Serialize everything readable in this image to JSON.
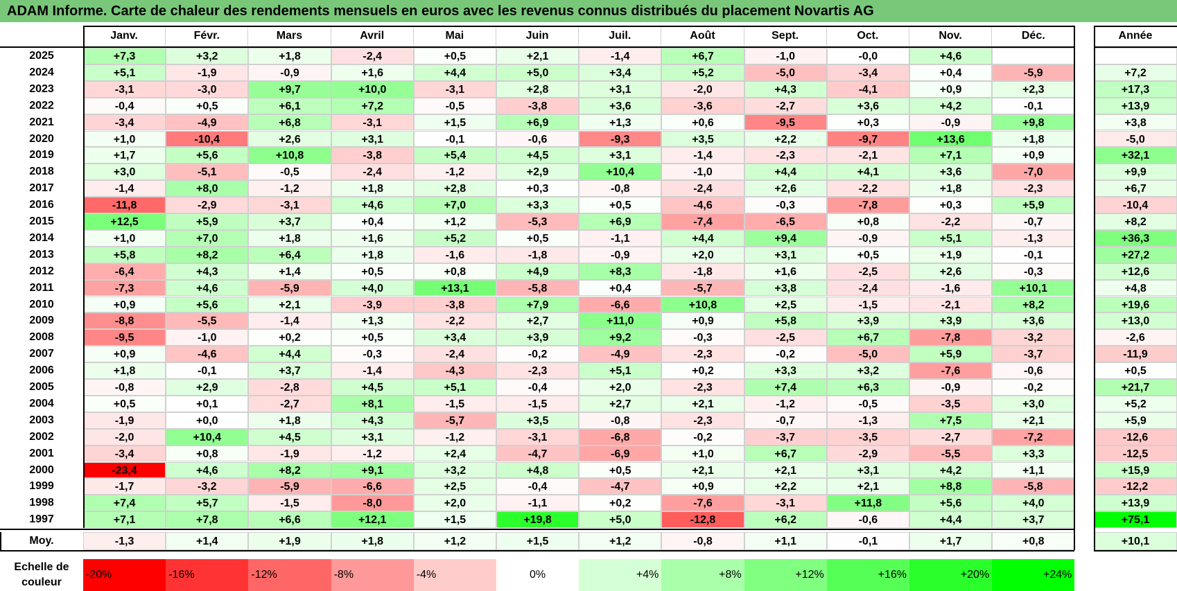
{
  "title": "ADAM Informe. Carte de chaleur des rendements mensuels en euros avec les revenus connus distribués du placement Novartis AG",
  "chart_data": {
    "type": "heatmap",
    "columns": [
      "Janv.",
      "Févr.",
      "Mars",
      "Avril",
      "Mai",
      "Juin",
      "Juil.",
      "Août",
      "Sept.",
      "Oct.",
      "Nov.",
      "Déc."
    ],
    "year_column_label": "Année",
    "rows": [
      {
        "year": "2025",
        "values": [
          "+7,3",
          "+3,2",
          "+1,8",
          "-2,4",
          "+0,5",
          "+2,1",
          "-1,4",
          "+6,7",
          "-1,0",
          "-0,0",
          "+4,6",
          ""
        ],
        "annual": ""
      },
      {
        "year": "2024",
        "values": [
          "+5,1",
          "-1,9",
          "-0,9",
          "+1,6",
          "+4,4",
          "+5,0",
          "+3,4",
          "+5,2",
          "-5,0",
          "-3,4",
          "+0,4",
          "-5,9"
        ],
        "annual": "+7,2"
      },
      {
        "year": "2023",
        "values": [
          "-3,1",
          "-3,0",
          "+9,7",
          "+10,0",
          "-3,1",
          "+2,8",
          "+3,1",
          "-2,0",
          "+4,3",
          "-4,1",
          "+0,9",
          "+2,3"
        ],
        "annual": "+17,3"
      },
      {
        "year": "2022",
        "values": [
          "-0,4",
          "+0,5",
          "+6,1",
          "+7,2",
          "-0,5",
          "-3,8",
          "+3,6",
          "-3,6",
          "-2,7",
          "+3,6",
          "+4,2",
          "-0,1"
        ],
        "annual": "+13,9"
      },
      {
        "year": "2021",
        "values": [
          "-3,4",
          "-4,9",
          "+6,8",
          "-3,1",
          "+1,5",
          "+6,9",
          "+1,3",
          "+0,6",
          "-9,5",
          "+0,3",
          "-0,9",
          "+9,8"
        ],
        "annual": "+3,8"
      },
      {
        "year": "2020",
        "values": [
          "+1,0",
          "-10,4",
          "+2,6",
          "+3,1",
          "-0,1",
          "-0,6",
          "-9,3",
          "+3,5",
          "+2,2",
          "-9,7",
          "+13,6",
          "+1,8"
        ],
        "annual": "-5,0"
      },
      {
        "year": "2019",
        "values": [
          "+1,7",
          "+5,6",
          "+10,8",
          "-3,8",
          "+5,4",
          "+4,5",
          "+3,1",
          "-1,4",
          "-2,3",
          "-2,1",
          "+7,1",
          "+0,9"
        ],
        "annual": "+32,1"
      },
      {
        "year": "2018",
        "values": [
          "+3,0",
          "-5,1",
          "-0,5",
          "-2,4",
          "-1,2",
          "+2,9",
          "+10,4",
          "-1,0",
          "+4,4",
          "+4,1",
          "+3,6",
          "-7,0"
        ],
        "annual": "+9,9"
      },
      {
        "year": "2017",
        "values": [
          "-1,4",
          "+8,0",
          "-1,2",
          "+1,8",
          "+2,8",
          "+0,3",
          "-0,8",
          "-2,4",
          "+2,6",
          "-2,2",
          "+1,8",
          "-2,3"
        ],
        "annual": "+6,7"
      },
      {
        "year": "2016",
        "values": [
          "-11,8",
          "-2,9",
          "-3,1",
          "+4,6",
          "+7,0",
          "+3,3",
          "+0,5",
          "-4,6",
          "-0,3",
          "-7,8",
          "+0,3",
          "+5,9"
        ],
        "annual": "-10,4"
      },
      {
        "year": "2015",
        "values": [
          "+12,5",
          "+5,9",
          "+3,7",
          "+0,4",
          "+1,2",
          "-5,3",
          "+6,9",
          "-7,4",
          "-6,5",
          "+0,8",
          "-2,2",
          "-0,7"
        ],
        "annual": "+8,2"
      },
      {
        "year": "2014",
        "values": [
          "+1,0",
          "+7,0",
          "+1,8",
          "+1,6",
          "+5,2",
          "+0,5",
          "-1,1",
          "+4,4",
          "+9,4",
          "-0,9",
          "+5,1",
          "-1,3"
        ],
        "annual": "+36,3"
      },
      {
        "year": "2013",
        "values": [
          "+5,8",
          "+8,2",
          "+6,4",
          "+1,8",
          "-1,6",
          "-1,8",
          "-0,9",
          "+2,0",
          "+3,1",
          "+0,5",
          "+1,9",
          "-0,1"
        ],
        "annual": "+27,2"
      },
      {
        "year": "2012",
        "values": [
          "-6,4",
          "+4,3",
          "+1,4",
          "+0,5",
          "+0,8",
          "+4,9",
          "+8,3",
          "-1,8",
          "+1,6",
          "-2,5",
          "+2,6",
          "-0,3"
        ],
        "annual": "+12,6"
      },
      {
        "year": "2011",
        "values": [
          "-7,3",
          "+4,6",
          "-5,9",
          "+4,0",
          "+13,1",
          "-5,8",
          "+0,4",
          "-5,7",
          "+3,8",
          "-2,4",
          "-1,6",
          "+10,1"
        ],
        "annual": "+4,8"
      },
      {
        "year": "2010",
        "values": [
          "+0,9",
          "+5,6",
          "+2,1",
          "-3,9",
          "-3,8",
          "+7,9",
          "-6,6",
          "+10,8",
          "+2,5",
          "-1,5",
          "-2,1",
          "+8,2"
        ],
        "annual": "+19,6"
      },
      {
        "year": "2009",
        "values": [
          "-8,8",
          "-5,5",
          "-1,4",
          "+1,3",
          "-2,2",
          "+2,7",
          "+11,0",
          "+0,9",
          "+5,8",
          "+3,9",
          "+3,9",
          "+3,6"
        ],
        "annual": "+13,0"
      },
      {
        "year": "2008",
        "values": [
          "-9,5",
          "-1,0",
          "+0,2",
          "+0,5",
          "+3,4",
          "+3,9",
          "+9,2",
          "-0,3",
          "-2,5",
          "+6,7",
          "-7,8",
          "-3,2"
        ],
        "annual": "-2,6"
      },
      {
        "year": "2007",
        "values": [
          "+0,9",
          "-4,6",
          "+4,4",
          "-0,3",
          "-2,4",
          "-0,2",
          "-4,9",
          "-2,3",
          "-0,2",
          "-5,0",
          "+5,9",
          "-3,7"
        ],
        "annual": "-11,9"
      },
      {
        "year": "2006",
        "values": [
          "+1,8",
          "-0,1",
          "+3,7",
          "-1,4",
          "-4,3",
          "-2,3",
          "+5,1",
          "+0,2",
          "+3,3",
          "+3,2",
          "-7,6",
          "-0,6"
        ],
        "annual": "+0,5"
      },
      {
        "year": "2005",
        "values": [
          "-0,8",
          "+2,9",
          "-2,8",
          "+4,5",
          "+5,1",
          "-0,4",
          "+2,0",
          "-2,3",
          "+7,4",
          "+6,3",
          "-0,9",
          "-0,2"
        ],
        "annual": "+21,7"
      },
      {
        "year": "2004",
        "values": [
          "+0,5",
          "+0,1",
          "-2,7",
          "+8,1",
          "-1,5",
          "-1,5",
          "+2,7",
          "+2,1",
          "-1,2",
          "-0,5",
          "-3,5",
          "+3,0"
        ],
        "annual": "+5,2"
      },
      {
        "year": "2003",
        "values": [
          "-1,9",
          "+0,0",
          "+1,8",
          "+4,3",
          "-5,7",
          "+3,5",
          "-0,8",
          "-2,3",
          "-0,7",
          "-1,3",
          "+7,5",
          "+2,1"
        ],
        "annual": "+5,9"
      },
      {
        "year": "2002",
        "values": [
          "-2,0",
          "+10,4",
          "+4,5",
          "+3,1",
          "-1,2",
          "-3,1",
          "-6,8",
          "-0,2",
          "-3,7",
          "-3,5",
          "-2,7",
          "-7,2"
        ],
        "annual": "-12,6"
      },
      {
        "year": "2001",
        "values": [
          "-3,4",
          "+0,8",
          "-1,9",
          "-1,2",
          "+2,4",
          "-4,7",
          "-6,9",
          "+1,0",
          "+6,7",
          "-2,9",
          "-5,5",
          "+3,3"
        ],
        "annual": "-12,5"
      },
      {
        "year": "2000",
        "values": [
          "-23,4",
          "+4,6",
          "+8,2",
          "+9,1",
          "+3,2",
          "+4,8",
          "+0,5",
          "+2,1",
          "+2,1",
          "+3,1",
          "+4,2",
          "+1,1"
        ],
        "annual": "+15,9"
      },
      {
        "year": "1999",
        "values": [
          "-1,7",
          "-3,2",
          "-5,9",
          "-6,6",
          "+2,5",
          "-0,4",
          "-4,7",
          "+0,9",
          "+2,2",
          "+2,1",
          "+8,8",
          "-5,8"
        ],
        "annual": "-12,2"
      },
      {
        "year": "1998",
        "values": [
          "+7,4",
          "+5,7",
          "-1,5",
          "-8,0",
          "+2,0",
          "-1,1",
          "+0,2",
          "-7,6",
          "-3,1",
          "+11,8",
          "+5,6",
          "+4,0"
        ],
        "annual": "+13,9"
      },
      {
        "year": "1997",
        "values": [
          "+7,1",
          "+7,8",
          "+6,6",
          "+12,1",
          "+1,5",
          "+19,8",
          "+5,0",
          "-12,8",
          "+6,2",
          "-0,6",
          "+4,4",
          "+3,7"
        ],
        "annual": "+75,1"
      }
    ],
    "average": {
      "label": "Moy.",
      "values": [
        "-1,3",
        "+1,4",
        "+1,9",
        "+1,8",
        "+1,2",
        "+1,5",
        "+1,2",
        "-0,8",
        "+1,1",
        "-0,1",
        "+1,7",
        "+0,8"
      ],
      "annual": "+10,1"
    },
    "color_scale": {
      "label": "Echelle de couleur",
      "stops": [
        "-20%",
        "-16%",
        "-12%",
        "-8%",
        "-4%",
        "0%",
        "+4%",
        "+8%",
        "+12%",
        "+16%",
        "+20%",
        "+24%"
      ],
      "stop_values": [
        -20,
        -16,
        -12,
        -8,
        -4,
        0,
        4,
        8,
        12,
        16,
        20,
        24
      ],
      "negative_color": "#ff0000",
      "positive_color": "#00ff00",
      "neutral_color": "#ffffff"
    }
  }
}
